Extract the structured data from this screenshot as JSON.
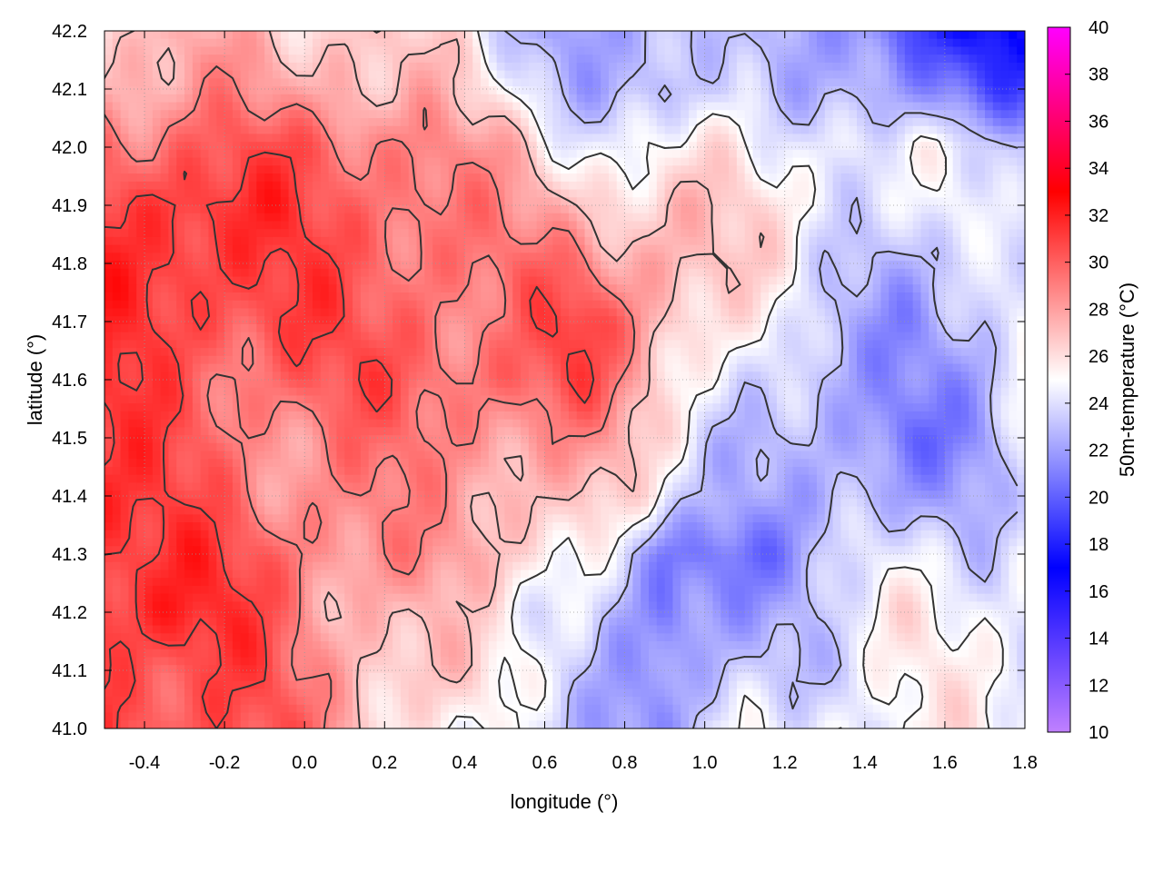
{
  "chart_data": {
    "type": "heatmap",
    "title": "",
    "xlabel": "longitude (°)",
    "ylabel": "latitude (°)",
    "colorbar_label": "50m-temperature (°C)",
    "xlim": [
      -0.5,
      1.8
    ],
    "ylim": [
      41.0,
      42.2
    ],
    "x_ticks": [
      "-0.4",
      "-0.2",
      "0.0",
      "0.2",
      "0.4",
      "0.6",
      "0.8",
      "1.0",
      "1.2",
      "1.4",
      "1.6",
      "1.8"
    ],
    "x_tick_values": [
      -0.4,
      -0.2,
      0.0,
      0.2,
      0.4,
      0.6,
      0.8,
      1.0,
      1.2,
      1.4,
      1.6,
      1.8
    ],
    "y_ticks": [
      "41.0",
      "41.1",
      "41.2",
      "41.3",
      "41.4",
      "41.5",
      "41.6",
      "41.7",
      "41.8",
      "41.9",
      "42.0",
      "42.1",
      "42.2"
    ],
    "y_tick_values": [
      41.0,
      41.1,
      41.2,
      41.3,
      41.4,
      41.5,
      41.6,
      41.7,
      41.8,
      41.9,
      42.0,
      42.1,
      42.2
    ],
    "colorbar_range": [
      10,
      40
    ],
    "colorbar_ticks": [
      "10",
      "12",
      "14",
      "16",
      "18",
      "20",
      "22",
      "24",
      "26",
      "28",
      "30",
      "32",
      "34",
      "36",
      "38",
      "40"
    ],
    "colorbar_tick_values": [
      10,
      12,
      14,
      16,
      18,
      20,
      22,
      24,
      26,
      28,
      30,
      32,
      34,
      36,
      38,
      40
    ],
    "colormap": [
      {
        "value": 10,
        "color": "#c080ff"
      },
      {
        "value": 17,
        "color": "#0000ff"
      },
      {
        "value": 25,
        "color": "#ffffff"
      },
      {
        "value": 33,
        "color": "#ff0000"
      },
      {
        "value": 40,
        "color": "#ff00ff"
      }
    ],
    "grid": true,
    "contour_color": "#333333",
    "field_grid": {
      "x": [
        -0.5,
        -0.3,
        -0.1,
        0.1,
        0.3,
        0.5,
        0.7,
        0.9,
        1.1,
        1.3,
        1.5,
        1.7,
        1.8
      ],
      "y": [
        41.0,
        41.1,
        41.2,
        41.3,
        41.4,
        41.5,
        41.6,
        41.7,
        41.8,
        41.9,
        42.0,
        42.1,
        42.2
      ],
      "values": [
        [
          31,
          31,
          30,
          28,
          26,
          24,
          23,
          22,
          24,
          25,
          25,
          25,
          25
        ],
        [
          31,
          31,
          30,
          28,
          27,
          25,
          24,
          21,
          23,
          24,
          25,
          25,
          25
        ],
        [
          32,
          32,
          30,
          28,
          27,
          25,
          25,
          20,
          22,
          24,
          25,
          25,
          25
        ],
        [
          32,
          31,
          30,
          29,
          28,
          27,
          26,
          20,
          21,
          23,
          24,
          24,
          25
        ],
        [
          32,
          30,
          29,
          29,
          28,
          28,
          27,
          24,
          23,
          22,
          22,
          23,
          24
        ],
        [
          31,
          30,
          29,
          29,
          29,
          29,
          28,
          26,
          23,
          22,
          21,
          22,
          24
        ],
        [
          31,
          30,
          30,
          30,
          30,
          30,
          30,
          27,
          24,
          22,
          22,
          22,
          24
        ],
        [
          31,
          31,
          31,
          30,
          30,
          29,
          31,
          28,
          25,
          23,
          22,
          23,
          24
        ],
        [
          31,
          32,
          31,
          30,
          30,
          29,
          29,
          28,
          26,
          24,
          23,
          23,
          24
        ],
        [
          31,
          32,
          31,
          30,
          30,
          28,
          27,
          27,
          26,
          25,
          24,
          24,
          24
        ],
        [
          30,
          30,
          30,
          30,
          29,
          27,
          25,
          25,
          25,
          25,
          24,
          24,
          24
        ],
        [
          28,
          28,
          28,
          28,
          27,
          25,
          23,
          22,
          24,
          23,
          21,
          20,
          20
        ],
        [
          27,
          27,
          27,
          27,
          26,
          24,
          22,
          22,
          24,
          22,
          19,
          18,
          17
        ]
      ]
    },
    "contour_levels": [
      23,
      25,
      27,
      29,
      31
    ]
  }
}
